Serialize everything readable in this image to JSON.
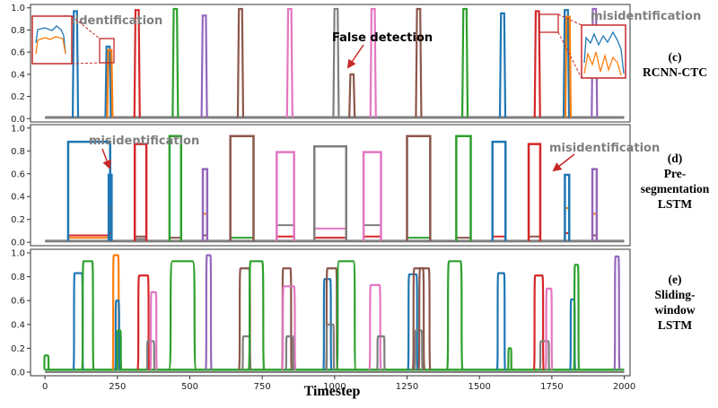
{
  "chart_data": [
    {
      "type": "line",
      "panel_label": "(c)",
      "panel_title": "RCNN-CTC",
      "xlim": [
        -50,
        2020
      ],
      "ylim": [
        -0.03,
        1.03
      ],
      "yticks": [
        0.0,
        0.2,
        0.4,
        0.6,
        0.8,
        1.0
      ],
      "ytick_labels": [
        "0.0",
        "0.2",
        "0.4",
        "0.6",
        "0.8",
        "1.0"
      ],
      "baseline": {
        "color": "#7f7f7f",
        "value": 0.01
      },
      "spikes": [
        {
          "x": 105,
          "value": 0.97,
          "color": "#1f77b4"
        },
        {
          "x": 218,
          "value": 0.65,
          "color": "#1f77b4"
        },
        {
          "x": 224,
          "value": 0.62,
          "color": "#ff7f0e"
        },
        {
          "x": 318,
          "value": 0.98,
          "color": "#d62728"
        },
        {
          "x": 450,
          "value": 0.99,
          "color": "#2ca02c"
        },
        {
          "x": 550,
          "value": 0.93,
          "color": "#9467bd"
        },
        {
          "x": 675,
          "value": 0.99,
          "color": "#8c564b"
        },
        {
          "x": 845,
          "value": 0.99,
          "color": "#e377c2"
        },
        {
          "x": 1005,
          "value": 0.99,
          "color": "#7f7f7f"
        },
        {
          "x": 1060,
          "value": 0.4,
          "color": "#8c564b"
        },
        {
          "x": 1133,
          "value": 0.99,
          "color": "#e377c2"
        },
        {
          "x": 1290,
          "value": 0.99,
          "color": "#8c564b"
        },
        {
          "x": 1450,
          "value": 0.99,
          "color": "#2ca02c"
        },
        {
          "x": 1580,
          "value": 0.95,
          "color": "#1f77b4"
        },
        {
          "x": 1700,
          "value": 0.97,
          "color": "#d62728"
        },
        {
          "x": 1800,
          "value": 0.98,
          "color": "#1f77b4"
        },
        {
          "x": 1806,
          "value": 0.92,
          "color": "#ff7f0e"
        },
        {
          "x": 1897,
          "value": 0.99,
          "color": "#9467bd"
        }
      ],
      "annotations": [
        {
          "text": "misidentification",
          "color": "#7f7f7f"
        },
        {
          "text": "False detection",
          "color": "#000000"
        },
        {
          "text": "misidentification",
          "color": "#7f7f7f"
        }
      ]
    },
    {
      "type": "line",
      "panel_label": "(d)",
      "panel_title": "Pre-segmentation LSTM",
      "xlim": [
        -50,
        2020
      ],
      "ylim": [
        -0.03,
        1.03
      ],
      "yticks": [
        0.0,
        0.2,
        0.4,
        0.6,
        0.8,
        1.0
      ],
      "ytick_labels": [
        "0.0",
        "0.2",
        "0.4",
        "0.6",
        "0.8",
        "1.0"
      ],
      "baseline": {
        "color": "#7f7f7f",
        "value": 0.01
      },
      "boxes": [
        {
          "start": 80,
          "end": 225,
          "value": 0.88,
          "color": "#1f77b4",
          "low": [
            {
              "color": "#d62728",
              "value": 0.06
            },
            {
              "color": "#ff7f0e",
              "value": 0.04
            }
          ]
        },
        {
          "start": 220,
          "end": 230,
          "value": 0.59,
          "color": "#1f77b4",
          "low": [
            {
              "color": "#ff7f0e",
              "value": 0.3
            },
            {
              "color": "#d62728",
              "value": 0.08
            }
          ]
        },
        {
          "start": 310,
          "end": 350,
          "value": 0.86,
          "color": "#d62728",
          "low": [
            {
              "color": "#8c564b",
              "value": 0.05
            },
            {
              "color": "#7f7f7f",
              "value": 0.03
            }
          ]
        },
        {
          "start": 430,
          "end": 470,
          "value": 0.93,
          "color": "#2ca02c",
          "low": [
            {
              "color": "#8c564b",
              "value": 0.04
            }
          ]
        },
        {
          "start": 545,
          "end": 560,
          "value": 0.64,
          "color": "#9467bd",
          "low": [
            {
              "color": "#ff7f0e",
              "value": 0.25
            },
            {
              "color": "#8c564b",
              "value": 0.06
            }
          ]
        },
        {
          "start": 640,
          "end": 720,
          "value": 0.93,
          "color": "#8c564b",
          "low": [
            {
              "color": "#2ca02c",
              "value": 0.04
            }
          ]
        },
        {
          "start": 800,
          "end": 860,
          "value": 0.79,
          "color": "#e377c2",
          "low": [
            {
              "color": "#7f7f7f",
              "value": 0.15
            },
            {
              "color": "#d62728",
              "value": 0.05
            }
          ]
        },
        {
          "start": 930,
          "end": 1040,
          "value": 0.84,
          "color": "#7f7f7f",
          "low": [
            {
              "color": "#e377c2",
              "value": 0.12
            },
            {
              "color": "#d62728",
              "value": 0.04
            }
          ]
        },
        {
          "start": 1100,
          "end": 1160,
          "value": 0.79,
          "color": "#e377c2",
          "low": [
            {
              "color": "#7f7f7f",
              "value": 0.15
            },
            {
              "color": "#d62728",
              "value": 0.05
            }
          ]
        },
        {
          "start": 1250,
          "end": 1330,
          "value": 0.93,
          "color": "#8c564b",
          "low": [
            {
              "color": "#2ca02c",
              "value": 0.04
            }
          ]
        },
        {
          "start": 1420,
          "end": 1470,
          "value": 0.93,
          "color": "#2ca02c",
          "low": [
            {
              "color": "#8c564b",
              "value": 0.04
            }
          ]
        },
        {
          "start": 1545,
          "end": 1590,
          "value": 0.88,
          "color": "#1f77b4",
          "low": [
            {
              "color": "#d62728",
              "value": 0.05
            }
          ]
        },
        {
          "start": 1670,
          "end": 1710,
          "value": 0.86,
          "color": "#d62728",
          "low": [
            {
              "color": "#8c564b",
              "value": 0.05
            }
          ]
        },
        {
          "start": 1795,
          "end": 1810,
          "value": 0.59,
          "color": "#1f77b4",
          "low": [
            {
              "color": "#ff7f0e",
              "value": 0.3
            },
            {
              "color": "#d62728",
              "value": 0.08
            }
          ]
        },
        {
          "start": 1890,
          "end": 1905,
          "value": 0.64,
          "color": "#9467bd",
          "low": [
            {
              "color": "#ff7f0e",
              "value": 0.25
            },
            {
              "color": "#8c564b",
              "value": 0.06
            }
          ]
        }
      ],
      "annotations": [
        {
          "text": "misidentification",
          "color": "#7f7f7f"
        },
        {
          "text": "misidentification",
          "color": "#7f7f7f"
        }
      ]
    },
    {
      "type": "line",
      "panel_label": "(e)",
      "panel_title": "Sliding-window LSTM",
      "xlim": [
        -50,
        2020
      ],
      "ylim": [
        -0.03,
        1.03
      ],
      "xticks": [
        0,
        250,
        500,
        750,
        1000,
        1250,
        1500,
        1750,
        2000
      ],
      "xtick_labels": [
        "0",
        "250",
        "500",
        "750",
        "1000",
        "1250",
        "1500",
        "1750",
        "2000"
      ],
      "yticks": [
        0.0,
        0.2,
        0.4,
        0.6,
        0.8,
        1.0
      ],
      "ytick_labels": [
        "0.0",
        "0.2",
        "0.4",
        "0.6",
        "0.8",
        "1.0"
      ],
      "xlabel": "Timestep",
      "baseline_value": 0.02,
      "bumps": [
        {
          "center": 5,
          "width": 10,
          "value": 0.14,
          "color": "#2ca02c"
        },
        {
          "center": 115,
          "width": 25,
          "value": 0.83,
          "color": "#1f77b4"
        },
        {
          "center": 148,
          "width": 30,
          "value": 0.93,
          "color": "#2ca02c"
        },
        {
          "center": 245,
          "width": 15,
          "value": 0.98,
          "color": "#ff7f0e"
        },
        {
          "center": 250,
          "width": 8,
          "value": 0.6,
          "color": "#1f77b4"
        },
        {
          "center": 256,
          "width": 8,
          "value": 0.35,
          "color": "#2ca02c"
        },
        {
          "center": 340,
          "width": 30,
          "value": 0.81,
          "color": "#d62728"
        },
        {
          "center": 365,
          "width": 20,
          "value": 0.26,
          "color": "#7f7f7f"
        },
        {
          "center": 375,
          "width": 15,
          "value": 0.67,
          "color": "#e377c2"
        },
        {
          "center": 475,
          "width": 70,
          "value": 0.93,
          "color": "#2ca02c"
        },
        {
          "center": 565,
          "width": 12,
          "value": 0.98,
          "color": "#9467bd"
        },
        {
          "center": 690,
          "width": 30,
          "value": 0.87,
          "color": "#8c564b"
        },
        {
          "center": 695,
          "width": 20,
          "value": 0.3,
          "color": "#7f7f7f"
        },
        {
          "center": 730,
          "width": 40,
          "value": 0.93,
          "color": "#2ca02c"
        },
        {
          "center": 835,
          "width": 25,
          "value": 0.87,
          "color": "#8c564b"
        },
        {
          "center": 842,
          "width": 35,
          "value": 0.72,
          "color": "#e377c2"
        },
        {
          "center": 845,
          "width": 20,
          "value": 0.3,
          "color": "#7f7f7f"
        },
        {
          "center": 975,
          "width": 20,
          "value": 0.78,
          "color": "#1f77b4"
        },
        {
          "center": 990,
          "width": 30,
          "value": 0.87,
          "color": "#8c564b"
        },
        {
          "center": 985,
          "width": 20,
          "value": 0.4,
          "color": "#7f7f7f"
        },
        {
          "center": 1040,
          "width": 50,
          "value": 0.93,
          "color": "#2ca02c"
        },
        {
          "center": 1140,
          "width": 30,
          "value": 0.73,
          "color": "#e377c2"
        },
        {
          "center": 1160,
          "width": 20,
          "value": 0.3,
          "color": "#7f7f7f"
        },
        {
          "center": 1270,
          "width": 25,
          "value": 0.82,
          "color": "#1f77b4"
        },
        {
          "center": 1290,
          "width": 30,
          "value": 0.87,
          "color": "#8c564b"
        },
        {
          "center": 1290,
          "width": 20,
          "value": 0.35,
          "color": "#7f7f7f"
        },
        {
          "center": 1310,
          "width": 30,
          "value": 0.87,
          "color": "#8c564b"
        },
        {
          "center": 1415,
          "width": 40,
          "value": 0.93,
          "color": "#2ca02c"
        },
        {
          "center": 1575,
          "width": 20,
          "value": 0.83,
          "color": "#1f77b4"
        },
        {
          "center": 1605,
          "width": 6,
          "value": 0.2,
          "color": "#2ca02c"
        },
        {
          "center": 1705,
          "width": 25,
          "value": 0.81,
          "color": "#d62728"
        },
        {
          "center": 1725,
          "width": 25,
          "value": 0.26,
          "color": "#7f7f7f"
        },
        {
          "center": 1740,
          "width": 15,
          "value": 0.7,
          "color": "#e377c2"
        },
        {
          "center": 1822,
          "width": 10,
          "value": 0.61,
          "color": "#1f77b4"
        },
        {
          "center": 1835,
          "width": 10,
          "value": 0.9,
          "color": "#2ca02c"
        },
        {
          "center": 1975,
          "width": 10,
          "value": 0.97,
          "color": "#9467bd"
        }
      ]
    }
  ]
}
